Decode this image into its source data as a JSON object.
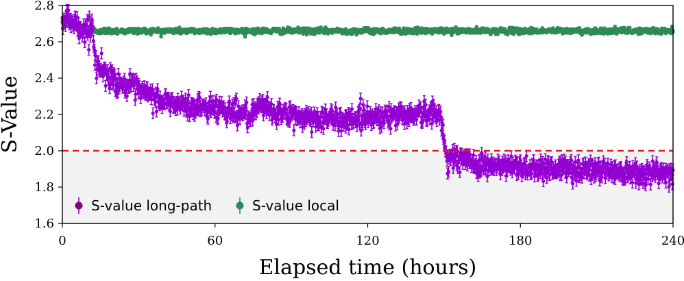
{
  "colors": {
    "long_path": "#9400d3",
    "long_path_marker": "#800080",
    "local": "#2e8b57",
    "threshold": "#e31a1c",
    "shade": "#f2f2f2"
  },
  "chart_data": {
    "type": "scatter",
    "title": "",
    "xlabel": "Elapsed time (hours)",
    "ylabel": "S-Value",
    "xlim": [
      0,
      240
    ],
    "ylim": [
      1.6,
      2.8
    ],
    "xticks": [
      0,
      60,
      120,
      180,
      240
    ],
    "xtick_labels": [
      "0",
      "60",
      "120",
      "180",
      "240"
    ],
    "yticks": [
      1.6,
      1.8,
      2.0,
      2.2,
      2.4,
      2.6,
      2.8
    ],
    "ytick_labels": [
      "1.6",
      "1.8",
      "2.0",
      "2.2",
      "2.4",
      "2.6",
      "2.8"
    ],
    "threshold": 2.0,
    "shaded_region": [
      1.6,
      2.0
    ],
    "legend": {
      "placement": "lower-left",
      "entries": [
        "S-value long-path",
        "S-value local"
      ]
    },
    "series": [
      {
        "name": "S-value long-path",
        "marker": "circle",
        "error_bar": 0.03,
        "noise": 0.03,
        "profile": [
          [
            0,
            2.74
          ],
          [
            4,
            2.72
          ],
          [
            8,
            2.66
          ],
          [
            12,
            2.68
          ],
          [
            13,
            2.48
          ],
          [
            20,
            2.39
          ],
          [
            30,
            2.33
          ],
          [
            40,
            2.27
          ],
          [
            50,
            2.24
          ],
          [
            60,
            2.24
          ],
          [
            70,
            2.21
          ],
          [
            76,
            2.18
          ],
          [
            77,
            2.25
          ],
          [
            82,
            2.22
          ],
          [
            90,
            2.19
          ],
          [
            100,
            2.18
          ],
          [
            110,
            2.17
          ],
          [
            120,
            2.19
          ],
          [
            130,
            2.19
          ],
          [
            140,
            2.21
          ],
          [
            147,
            2.2
          ],
          [
            149,
            2.19
          ],
          [
            150,
            2.04
          ],
          [
            151,
            1.97
          ],
          [
            160,
            1.94
          ],
          [
            170,
            1.91
          ],
          [
            180,
            1.91
          ],
          [
            200,
            1.9
          ],
          [
            220,
            1.89
          ],
          [
            230,
            1.88
          ],
          [
            240,
            1.87
          ]
        ]
      },
      {
        "name": "S-value local",
        "marker": "square",
        "error_bar": 0.01,
        "noise": 0.007,
        "profile": [
          [
            0,
            2.71
          ],
          [
            2,
            2.7
          ],
          [
            5,
            2.68
          ],
          [
            8,
            2.66
          ],
          [
            240,
            2.66
          ]
        ]
      }
    ]
  }
}
